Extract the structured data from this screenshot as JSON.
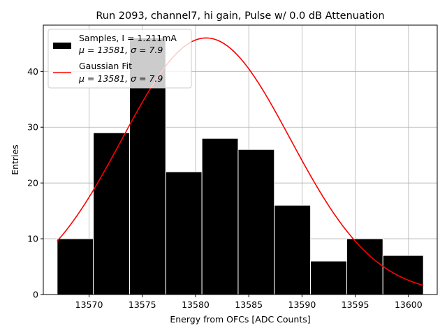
{
  "chart_data": {
    "type": "bar",
    "title": "Run 2093, channel7, hi gain, Pulse w/ 0.0 dB Attenuation",
    "xlabel": "Energy from OFCs [ADC Counts]",
    "ylabel": "Entries",
    "xlim": [
      13565.7,
      13602.7
    ],
    "ylim": [
      0,
      48.3
    ],
    "grid": true,
    "legend_position": "upper-left",
    "x_ticks": [
      "13570",
      "13575",
      "13580",
      "13585",
      "13590",
      "13595",
      "13600"
    ],
    "x_tick_values": [
      13570,
      13575,
      13580,
      13585,
      13590,
      13595,
      13600
    ],
    "y_ticks": [
      "0",
      "10",
      "20",
      "30",
      "40"
    ],
    "y_tick_values": [
      0,
      10,
      20,
      30,
      40
    ],
    "bins": [
      {
        "start": 13567.0,
        "end": 13570.4,
        "count": 10
      },
      {
        "start": 13570.4,
        "end": 13573.8,
        "count": 29
      },
      {
        "start": 13573.8,
        "end": 13577.2,
        "count": 46
      },
      {
        "start": 13577.2,
        "end": 13580.6,
        "count": 22
      },
      {
        "start": 13580.6,
        "end": 13584.0,
        "count": 28
      },
      {
        "start": 13584.0,
        "end": 13587.4,
        "count": 26
      },
      {
        "start": 13587.4,
        "end": 13590.8,
        "count": 16
      },
      {
        "start": 13590.8,
        "end": 13594.2,
        "count": 6
      },
      {
        "start": 13594.2,
        "end": 13597.6,
        "count": 10
      },
      {
        "start": 13597.6,
        "end": 13601.4,
        "count": 7
      }
    ],
    "fit": {
      "mu": 13581,
      "sigma": 7.9,
      "amplitude": 46,
      "x_range": [
        13567.0,
        13601.4
      ]
    },
    "series": [
      {
        "name": "Samples, I = 1.211mA",
        "stats": "μ = 13581, σ = 7.9",
        "color": "#000000",
        "kind": "histogram"
      },
      {
        "name": "Gaussian Fit",
        "stats": "μ = 13581, σ = 7.9",
        "color": "#ff0000",
        "kind": "line"
      }
    ]
  }
}
